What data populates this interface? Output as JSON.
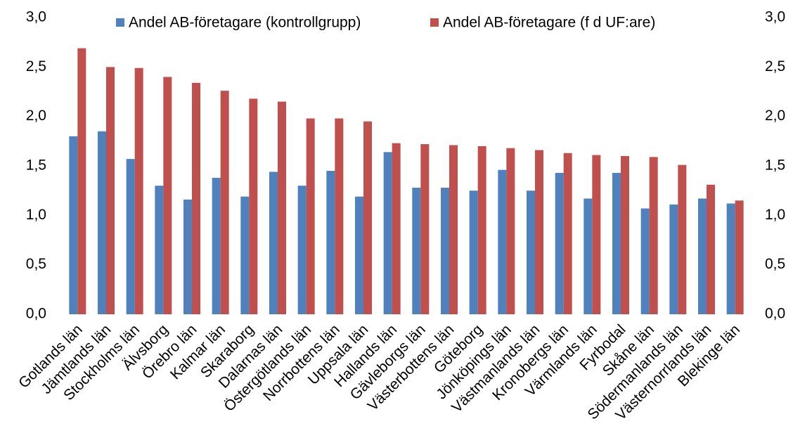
{
  "chart_data": {
    "type": "bar",
    "categories": [
      "Gotlands län",
      "Jämtlands län",
      "Stockholms län",
      "Älvsborg",
      "Örebro län",
      "Kalmar län",
      "Skaraborg",
      "Dalarnas län",
      "Östergötlands län",
      "Norrbottens län",
      "Uppsala län",
      "Hallands län",
      "Gävleborgs län",
      "Västerbottens län",
      "Göteborg",
      "Jönköpings län",
      "Västmanlands län",
      "Kronobergs län",
      "Värmlands län",
      "Fyrbodal",
      "Skåne län",
      "Södermanlands län",
      "Västernorrlands län",
      "Blekinge län"
    ],
    "series": [
      {
        "name": "Andel AB-företagare (kontrollgrupp)",
        "color": "#4f81bd",
        "values": [
          1.8,
          1.85,
          1.57,
          1.3,
          1.16,
          1.38,
          1.19,
          1.44,
          1.3,
          1.45,
          1.19,
          1.64,
          1.28,
          1.28,
          1.25,
          1.46,
          1.25,
          1.43,
          1.17,
          1.43,
          1.07,
          1.11,
          1.17,
          1.12
        ]
      },
      {
        "name": "Andel AB-företagare (f d UF:are)",
        "color": "#c0504d",
        "values": [
          2.69,
          2.5,
          2.49,
          2.4,
          2.34,
          2.26,
          2.18,
          2.15,
          1.98,
          1.98,
          1.95,
          1.73,
          1.72,
          1.71,
          1.7,
          1.68,
          1.66,
          1.63,
          1.61,
          1.6,
          1.59,
          1.51,
          1.31,
          1.15
        ]
      }
    ],
    "ylim": [
      0,
      3
    ],
    "yticks": [
      {
        "value": 0,
        "label": "0,0"
      },
      {
        "value": 0.5,
        "label": "0,5"
      },
      {
        "value": 1,
        "label": "1,0"
      },
      {
        "value": 1.5,
        "label": "1,5"
      },
      {
        "value": 2,
        "label": "2,0"
      },
      {
        "value": 2.5,
        "label": "2,5"
      },
      {
        "value": 3,
        "label": "3,0"
      }
    ],
    "y2lim": [
      0,
      3
    ],
    "y2ticks": [
      {
        "value": 0,
        "label": "0,0"
      },
      {
        "value": 0.5,
        "label": "0,5"
      },
      {
        "value": 1,
        "label": "1,0"
      },
      {
        "value": 1.5,
        "label": "1,5"
      },
      {
        "value": 2,
        "label": "2,0"
      },
      {
        "value": 2.5,
        "label": "2,5"
      },
      {
        "value": 3,
        "label": "3,0"
      }
    ],
    "legend": "top",
    "grid": false
  }
}
